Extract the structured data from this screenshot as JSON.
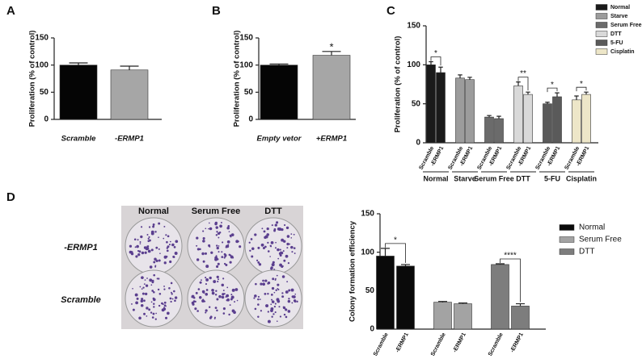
{
  "chart_data": [
    {
      "type": "bar",
      "panel": "A",
      "y_label": "Proliferation (% of control)",
      "categories": [
        "Scramble",
        "-ERMP1"
      ],
      "values": [
        100,
        91
      ],
      "errors": [
        4,
        7
      ],
      "colors": [
        "#050505",
        "#a6a6a6"
      ],
      "ylim": [
        0,
        150
      ],
      "yticks": [
        0,
        50,
        100,
        150
      ]
    },
    {
      "type": "bar",
      "panel": "B",
      "y_label": "Proliferation (% of control)",
      "categories": [
        "Empty vetor",
        "+ERMP1"
      ],
      "values": [
        100,
        118
      ],
      "errors": [
        2,
        7
      ],
      "colors": [
        "#050505",
        "#a6a6a6"
      ],
      "annotation": "*",
      "ylim": [
        0,
        150
      ],
      "yticks": [
        0,
        50,
        100,
        150
      ]
    },
    {
      "type": "grouped_bar",
      "panel": "C",
      "y_label": "Proliferation (% of control)",
      "categories": [
        "Scramble",
        "-ERMP1"
      ],
      "ylim": [
        0,
        150
      ],
      "yticks": [
        0,
        50,
        100,
        150
      ],
      "series": [
        {
          "name": "Normal",
          "color": "#1a1a1a",
          "values": [
            100,
            90
          ],
          "errors": [
            4,
            7
          ],
          "significance": "*"
        },
        {
          "name": "Starve",
          "color": "#9c9c9c",
          "values": [
            83,
            81
          ],
          "errors": [
            4,
            3
          ]
        },
        {
          "name": "Serum Free",
          "color": "#6b6b6b",
          "values": [
            33,
            31
          ],
          "errors": [
            2,
            3
          ]
        },
        {
          "name": "DTT",
          "color": "#d9d9d9",
          "values": [
            73,
            62
          ],
          "errors": [
            5,
            3
          ],
          "significance": "**"
        },
        {
          "name": "5-FU",
          "color": "#5a5a5a",
          "values": [
            50,
            59
          ],
          "errors": [
            2,
            5
          ],
          "significance": "*"
        },
        {
          "name": "Cisplatin",
          "color": "#ede6c8",
          "values": [
            55,
            62
          ],
          "errors": [
            5,
            3
          ],
          "significance": "*"
        }
      ]
    },
    {
      "type": "grouped_bar",
      "panel": "D",
      "y_label": "Colony formation efficiency",
      "categories": [
        "Scramble",
        "-ERMP1"
      ],
      "ylim": [
        0,
        150
      ],
      "yticks": [
        0,
        50,
        100,
        150
      ],
      "photo": {
        "column_labels": [
          "Normal",
          "Serum Free",
          "DTT"
        ],
        "row_labels": [
          "-ERMP1",
          "Scramble"
        ]
      },
      "series": [
        {
          "name": "Normal",
          "color": "#0a0a0a",
          "values": [
            95,
            82
          ],
          "errors": [
            10,
            2
          ],
          "significance": "*"
        },
        {
          "name": "Serum Free",
          "color": "#a3a3a3",
          "values": [
            35,
            33
          ],
          "errors": [
            1,
            1
          ]
        },
        {
          "name": "DTT",
          "color": "#7d7d7d",
          "values": [
            84,
            30
          ],
          "errors": [
            1,
            3
          ],
          "significance": "****"
        }
      ]
    }
  ]
}
